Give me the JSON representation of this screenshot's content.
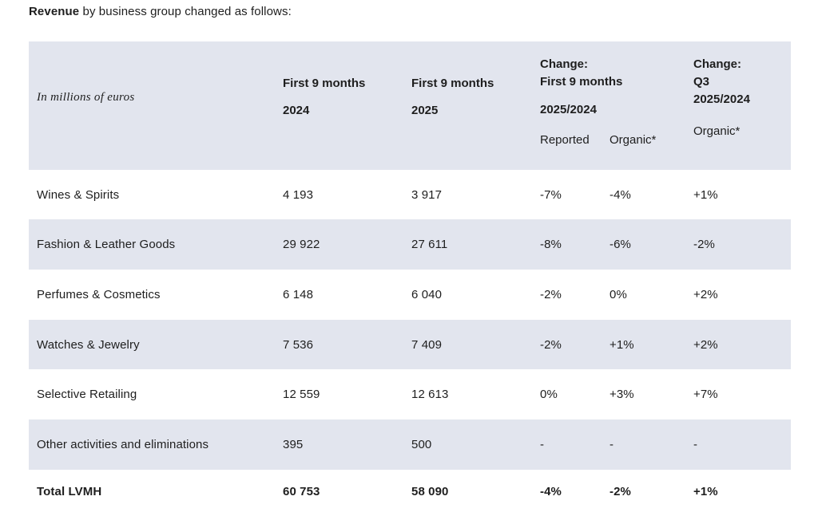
{
  "intro": {
    "bold": "Revenue",
    "rest": " by business group changed as follows:"
  },
  "colors": {
    "band": "#e2e5ee",
    "text": "#1e1e1e",
    "background": "#ffffff"
  },
  "table": {
    "corner_label": "In millions of euros",
    "col_2024": {
      "line1": "First 9 months",
      "line2": "2024"
    },
    "col_2025": {
      "line1": "First 9 months",
      "line2": "2025"
    },
    "change_9m": {
      "line1": "Change:",
      "line2": "First 9 months",
      "line3": "2025/2024",
      "sub_reported": "Reported",
      "sub_organic": "Organic*"
    },
    "change_q3": {
      "line1": "Change:",
      "line2": "Q3",
      "line3": "2025/2024",
      "sub_organic": "Organic*"
    },
    "rows": [
      {
        "label": "Wines & Spirits",
        "m2024": "4 193",
        "m2025": "3 917",
        "reported": "-7%",
        "organic": "-4%",
        "q3": "+1%"
      },
      {
        "label": "Fashion & Leather Goods",
        "m2024": "29 922",
        "m2025": "27 611",
        "reported": "-8%",
        "organic": "-6%",
        "q3": "-2%"
      },
      {
        "label": "Perfumes & Cosmetics",
        "m2024": "6 148",
        "m2025": "6 040",
        "reported": "-2%",
        "organic": "0%",
        "q3": "+2%"
      },
      {
        "label": "Watches & Jewelry",
        "m2024": "7 536",
        "m2025": "7 409",
        "reported": "-2%",
        "organic": "+1%",
        "q3": "+2%"
      },
      {
        "label": "Selective Retailing",
        "m2024": "12 559",
        "m2025": "12 613",
        "reported": "0%",
        "organic": "+3%",
        "q3": "+7%"
      },
      {
        "label": "Other activities and eliminations",
        "m2024": "395",
        "m2025": "500",
        "reported": "-",
        "organic": "-",
        "q3": "-"
      }
    ],
    "total": {
      "label": "Total LVMH",
      "m2024": "60 753",
      "m2025": "58 090",
      "reported": "-4%",
      "organic": "-2%",
      "q3": "+1%"
    }
  }
}
